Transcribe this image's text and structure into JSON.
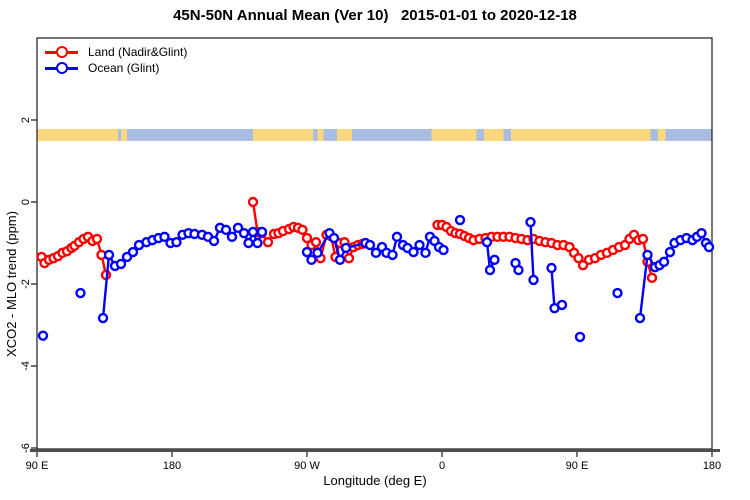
{
  "page": {
    "background": "#ffffff"
  },
  "chart_data": {
    "type": "line",
    "title": "45N-50N Annual Mean (Ver 10)   2015-01-01 to 2020-12-18",
    "xlabel": "Longitude (deg E)",
    "ylabel": "XCO2 - MLO trend (ppm)",
    "x_axis": {
      "range_lon_plot": [
        90,
        540
      ],
      "ticks": [
        {
          "lon": 90,
          "label": "90 E"
        },
        {
          "lon": 180,
          "label": "180"
        },
        {
          "lon": 270,
          "label": "90 W"
        },
        {
          "lon": 360,
          "label": "0"
        },
        {
          "lon": 450,
          "label": "90 E"
        },
        {
          "lon": 540,
          "label": "180"
        }
      ]
    },
    "y_axis": {
      "range": [
        -6.1,
        4.0
      ],
      "ticks": [
        {
          "value": 2,
          "label": "2"
        },
        {
          "value": 0,
          "label": "0"
        },
        {
          "value": -2,
          "label": "-2"
        },
        {
          "value": -4,
          "label": "-4"
        },
        {
          "value": -6,
          "label": "-6"
        }
      ]
    },
    "legend": {
      "position": "top-left",
      "entries": [
        {
          "label": "Land (Nadir&Glint)",
          "color": "#ff0000"
        },
        {
          "label": "Ocean (Glint)",
          "color": "#0000ff"
        }
      ]
    },
    "map_band": {
      "value_top": 1.78,
      "value_bottom": 1.49,
      "land_color": "#fbd87e",
      "ocean_color": "#a9bce2",
      "segments": [
        {
          "from": 90,
          "to": 144,
          "type": "land"
        },
        {
          "from": 144,
          "to": 234,
          "type": "ocean"
        },
        {
          "from": 234,
          "to": 274,
          "type": "land"
        },
        {
          "from": 274,
          "to": 277,
          "type": "ocean"
        },
        {
          "from": 277,
          "to": 281,
          "type": "land"
        },
        {
          "from": 281,
          "to": 290,
          "type": "ocean"
        },
        {
          "from": 290,
          "to": 300,
          "type": "land"
        },
        {
          "from": 300,
          "to": 353,
          "type": "ocean"
        },
        {
          "from": 353,
          "to": 499,
          "type": "land"
        },
        {
          "from": 499,
          "to": 540,
          "type": "ocean"
        }
      ],
      "specks": [
        {
          "from": 146,
          "to": 150,
          "type": "land"
        },
        {
          "from": 383,
          "to": 388,
          "type": "ocean"
        },
        {
          "from": 401,
          "to": 406,
          "type": "ocean"
        },
        {
          "from": 504,
          "to": 509,
          "type": "land"
        }
      ]
    },
    "series": [
      {
        "name": "Land (Nadir&Glint)",
        "color": "#ff0000",
        "marker": "open-circle",
        "segments": [
          [
            [
              93,
              -1.34
            ],
            [
              95,
              -1.49
            ],
            [
              98,
              -1.41
            ],
            [
              101,
              -1.37
            ],
            [
              104,
              -1.32
            ],
            [
              107,
              -1.24
            ],
            [
              110,
              -1.2
            ],
            [
              113,
              -1.12
            ],
            [
              115,
              -1.07
            ],
            [
              118,
              -0.98
            ],
            [
              121,
              -0.9
            ],
            [
              124,
              -0.85
            ],
            [
              127,
              -0.95
            ],
            [
              130,
              -0.9
            ],
            [
              133,
              -1.29
            ],
            [
              136,
              -1.78
            ]
          ],
          [
            [
              234,
              0.0
            ],
            [
              237,
              -0.73
            ],
            [
              240,
              -0.76
            ],
            [
              244,
              -0.98
            ],
            [
              248,
              -0.78
            ],
            [
              251,
              -0.76
            ],
            [
              254,
              -0.71
            ],
            [
              258,
              -0.66
            ],
            [
              261,
              -0.61
            ],
            [
              264,
              -0.63
            ],
            [
              267,
              -0.68
            ],
            [
              270,
              -0.88
            ],
            [
              273,
              -1.05
            ],
            [
              276,
              -0.98
            ],
            [
              279,
              -1.37
            ],
            [
              283,
              -0.8
            ],
            [
              286,
              -0.83
            ],
            [
              289,
              -1.34
            ],
            [
              292,
              -1.0
            ],
            [
              295,
              -0.98
            ],
            [
              298,
              -1.37
            ],
            [
              301,
              -1.1
            ],
            [
              304,
              -1.05
            ],
            [
              307,
              -1.02
            ]
          ],
          [
            [
              357,
              -0.56
            ],
            [
              360,
              -0.56
            ],
            [
              363,
              -0.61
            ],
            [
              366,
              -0.71
            ],
            [
              369,
              -0.76
            ],
            [
              372,
              -0.78
            ],
            [
              375,
              -0.83
            ],
            [
              378,
              -0.88
            ],
            [
              381,
              -0.93
            ],
            [
              385,
              -0.9
            ],
            [
              389,
              -0.88
            ],
            [
              393,
              -0.85
            ],
            [
              397,
              -0.85
            ],
            [
              401,
              -0.85
            ],
            [
              405,
              -0.85
            ],
            [
              409,
              -0.88
            ],
            [
              413,
              -0.9
            ],
            [
              417,
              -0.93
            ],
            [
              421,
              -0.9
            ],
            [
              425,
              -0.95
            ],
            [
              429,
              -0.98
            ],
            [
              433,
              -1.0
            ],
            [
              437,
              -1.05
            ],
            [
              441,
              -1.05
            ],
            [
              445,
              -1.1
            ],
            [
              448,
              -1.24
            ],
            [
              451,
              -1.37
            ],
            [
              454,
              -1.54
            ],
            [
              458,
              -1.41
            ],
            [
              462,
              -1.37
            ],
            [
              466,
              -1.29
            ],
            [
              470,
              -1.24
            ],
            [
              474,
              -1.17
            ],
            [
              478,
              -1.1
            ],
            [
              482,
              -1.05
            ],
            [
              485,
              -0.9
            ],
            [
              488,
              -0.8
            ],
            [
              491,
              -0.93
            ],
            [
              494,
              -0.9
            ],
            [
              497,
              -1.46
            ],
            [
              500,
              -1.85
            ]
          ]
        ]
      },
      {
        "name": "Ocean (Glint)",
        "color": "#0000ff",
        "marker": "open-circle",
        "segments": [
          [
            [
              94,
              -3.26
            ]
          ],
          [
            [
              119,
              -2.22
            ]
          ],
          [
            [
              134,
              -2.83
            ],
            [
              138,
              -1.29
            ],
            [
              142,
              -1.56
            ],
            [
              146,
              -1.51
            ],
            [
              150,
              -1.34
            ],
            [
              154,
              -1.22
            ],
            [
              158,
              -1.05
            ],
            [
              163,
              -0.98
            ],
            [
              167,
              -0.93
            ],
            [
              171,
              -0.88
            ],
            [
              175,
              -0.85
            ],
            [
              179,
              -1.0
            ],
            [
              183,
              -0.98
            ],
            [
              187,
              -0.8
            ],
            [
              191,
              -0.76
            ],
            [
              195,
              -0.78
            ],
            [
              200,
              -0.8
            ],
            [
              204,
              -0.85
            ],
            [
              208,
              -0.95
            ],
            [
              212,
              -0.63
            ],
            [
              216,
              -0.68
            ],
            [
              220,
              -0.85
            ],
            [
              224,
              -0.63
            ],
            [
              228,
              -0.76
            ],
            [
              231,
              -1.0
            ],
            [
              234,
              -0.73
            ],
            [
              237,
              -1.0
            ],
            [
              240,
              -0.73
            ]
          ],
          [
            [
              270,
              -1.22
            ],
            [
              273,
              -1.41
            ],
            [
              277,
              -1.24
            ],
            [
              285,
              -0.76
            ],
            [
              288,
              -0.88
            ],
            [
              292,
              -1.41
            ],
            [
              296,
              -1.12
            ],
            [
              309,
              -1.0
            ],
            [
              312,
              -1.05
            ],
            [
              316,
              -1.24
            ],
            [
              320,
              -1.1
            ],
            [
              323,
              -1.24
            ],
            [
              327,
              -1.29
            ],
            [
              330,
              -0.85
            ],
            [
              334,
              -1.05
            ],
            [
              337,
              -1.12
            ],
            [
              341,
              -1.22
            ],
            [
              345,
              -1.05
            ],
            [
              349,
              -1.24
            ],
            [
              352,
              -0.85
            ],
            [
              355,
              -0.95
            ],
            [
              358,
              -1.1
            ],
            [
              361,
              -1.17
            ]
          ],
          [
            [
              372,
              -0.44
            ]
          ],
          [
            [
              390,
              -0.98
            ],
            [
              392,
              -1.66
            ],
            [
              395,
              -1.41
            ]
          ],
          [
            [
              409,
              -1.49
            ],
            [
              411,
              -1.66
            ]
          ],
          [
            [
              419,
              -0.49
            ],
            [
              421,
              -1.9
            ]
          ],
          [
            [
              433,
              -1.61
            ],
            [
              435,
              -2.59
            ],
            [
              440,
              -2.51
            ]
          ],
          [
            [
              452,
              -3.29
            ]
          ],
          [
            [
              477,
              -2.22
            ]
          ],
          [
            [
              492,
              -2.83
            ],
            [
              497,
              -1.29
            ],
            [
              502,
              -1.59
            ],
            [
              505,
              -1.54
            ],
            [
              508,
              -1.46
            ],
            [
              512,
              -1.22
            ],
            [
              515,
              -1.0
            ],
            [
              519,
              -0.93
            ],
            [
              523,
              -0.88
            ],
            [
              527,
              -0.93
            ],
            [
              530,
              -0.85
            ],
            [
              533,
              -0.76
            ],
            [
              536,
              -1.0
            ],
            [
              538,
              -1.1
            ]
          ]
        ]
      }
    ]
  }
}
